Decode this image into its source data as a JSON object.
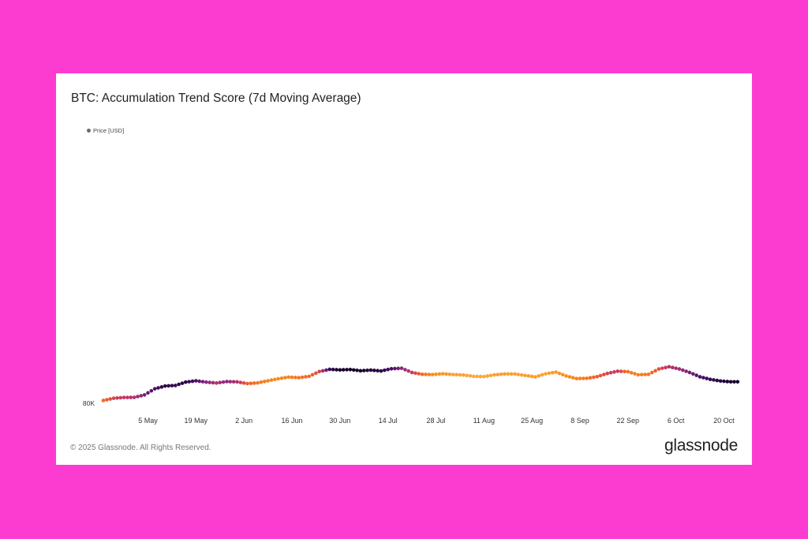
{
  "card": {
    "title": "BTC: Accumulation Trend Score (7d Moving Average)",
    "footer": "© 2025 Glassnode. All Rights Reserved.",
    "brand": "glassnode"
  },
  "legend": {
    "label": "Price [USD]",
    "color": "#6b6b6b"
  },
  "colors": {
    "background": "#fc3bd0",
    "card": "#ffffff",
    "score_scale": [
      "#14002c",
      "#4a0e6b",
      "#8c2680",
      "#c9365f",
      "#ee5e2c",
      "#f98e1a",
      "#fbb34a"
    ]
  },
  "chart_data": {
    "type": "scatter",
    "series_name": "Price [USD]",
    "color_encoding": "Accumulation Trend Score (dark = high, orange = low)",
    "y_tick_label": "80K",
    "ylim": [
      80000,
      135000
    ],
    "x_tick_labels": [
      "5 May",
      "19 May",
      "2 Jun",
      "16 Jun",
      "30 Jun",
      "14 Jul",
      "28 Jul",
      "11 Aug",
      "25 Aug",
      "8 Sep",
      "22 Sep",
      "6 Oct",
      "20 Oct"
    ],
    "days_from_apr22": [
      0,
      3,
      6,
      9,
      12,
      15,
      18,
      21,
      24,
      27,
      30,
      33,
      36,
      39,
      42,
      45,
      48,
      51,
      54,
      57,
      60,
      63,
      66,
      69,
      72,
      75,
      78,
      81,
      84,
      87,
      90,
      93,
      96,
      99,
      102,
      105,
      108,
      111,
      114,
      117,
      120,
      123,
      126,
      129,
      132,
      135,
      138,
      141,
      144,
      147,
      150,
      153,
      156,
      159,
      162,
      165,
      168,
      171,
      174,
      177,
      180,
      183,
      185
    ],
    "price": [
      82500,
      84500,
      85200,
      85300,
      87500,
      93000,
      95500,
      96000,
      99000,
      100200,
      99000,
      98200,
      99500,
      99200,
      97700,
      98300,
      100200,
      102000,
      103500,
      103000,
      104200,
      108500,
      110500,
      110000,
      110300,
      109200,
      109800,
      109000,
      111000,
      111500,
      107700,
      106000,
      105800,
      106500,
      105800,
      105400,
      104200,
      104000,
      105500,
      106300,
      106300,
      105000,
      103700,
      106500,
      108000,
      104500,
      102200,
      102400,
      103900,
      106800,
      108800,
      108400,
      105600,
      106000,
      110800,
      112800,
      110800,
      107700,
      103800,
      101500,
      100000,
      99300,
      99300
    ],
    "score": [
      0.35,
      0.5,
      0.55,
      0.6,
      0.75,
      0.85,
      0.95,
      0.9,
      0.95,
      0.85,
      0.7,
      0.6,
      0.7,
      0.6,
      0.4,
      0.3,
      0.25,
      0.2,
      0.25,
      0.3,
      0.35,
      0.5,
      0.9,
      1.0,
      1.0,
      1.0,
      0.95,
      0.95,
      0.85,
      0.7,
      0.55,
      0.35,
      0.2,
      0.15,
      0.1,
      0.08,
      0.05,
      0.05,
      0.1,
      0.12,
      0.1,
      0.1,
      0.12,
      0.08,
      0.15,
      0.2,
      0.25,
      0.3,
      0.4,
      0.5,
      0.55,
      0.3,
      0.25,
      0.3,
      0.45,
      0.6,
      0.65,
      0.75,
      0.85,
      0.9,
      0.95,
      1.0,
      1.0
    ]
  }
}
